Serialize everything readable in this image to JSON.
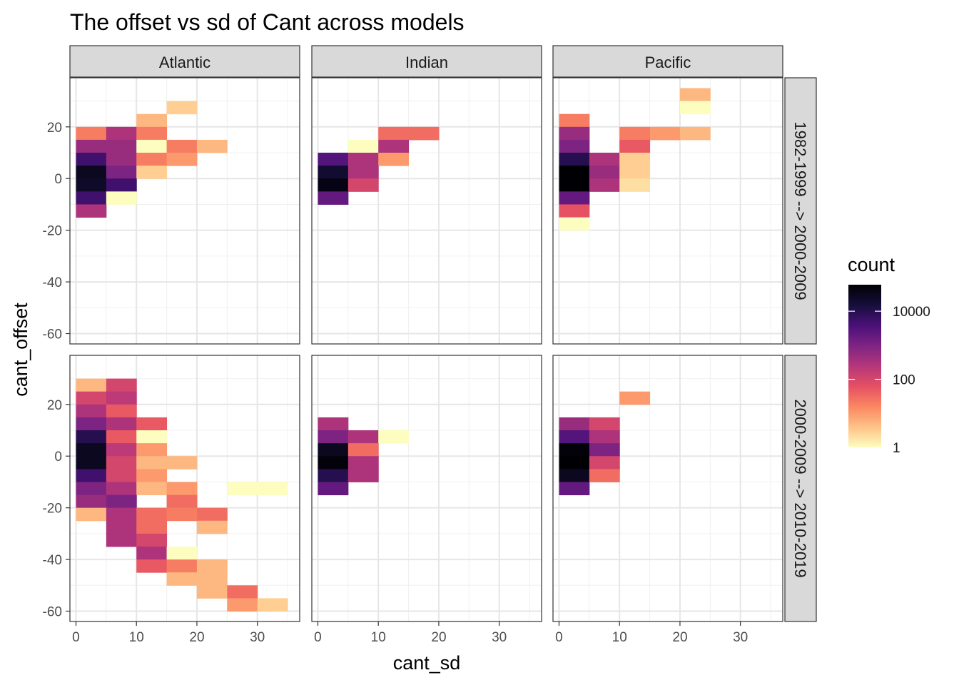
{
  "chart_data": {
    "type": "heatmap",
    "title": "The offset vs sd of Cant across models",
    "xlabel": "cant_sd",
    "ylabel": "cant_offset",
    "xlim": [
      -1,
      37
    ],
    "ylim": [
      -64,
      39
    ],
    "x_ticks": [
      0,
      10,
      20,
      30
    ],
    "y_ticks": [
      20,
      0,
      -20,
      -40,
      -60
    ],
    "x_tick_labels": [
      "0",
      "10",
      "20",
      "30"
    ],
    "y_tick_labels": [
      "20",
      "0",
      "-20",
      "-40",
      "-60"
    ],
    "bin_width": 5,
    "bin_height": 5,
    "columns": [
      "Atlantic",
      "Indian",
      "Pacific"
    ],
    "rows": [
      "1982-1999 --> 2000-2009",
      "2000-2009 --> 2010-2019"
    ],
    "legend": {
      "title": "count",
      "scale": "log10",
      "min": 1,
      "max": 60000,
      "breaks": [
        10000,
        100,
        1
      ],
      "break_labels": [
        "10000",
        "100",
        "1"
      ],
      "colors": [
        "#fcfdbf",
        "#fec287",
        "#fb8761",
        "#e55064",
        "#b5367a",
        "#7e2482",
        "#4a1079",
        "#160f3b",
        "#000004"
      ]
    },
    "panels": [
      {
        "col": 0,
        "row": 0,
        "cells": [
          [
            15,
            25,
            3
          ],
          [
            10,
            20,
            5
          ],
          [
            0,
            15,
            20
          ],
          [
            5,
            15,
            300
          ],
          [
            10,
            15,
            20
          ],
          [
            0,
            10,
            500
          ],
          [
            5,
            10,
            500
          ],
          [
            10,
            10,
            1
          ],
          [
            15,
            10,
            20
          ],
          [
            20,
            10,
            5
          ],
          [
            0,
            5,
            5000
          ],
          [
            5,
            5,
            500
          ],
          [
            10,
            5,
            20
          ],
          [
            15,
            5,
            10
          ],
          [
            0,
            0,
            30000
          ],
          [
            5,
            0,
            1000
          ],
          [
            10,
            0,
            3
          ],
          [
            0,
            -5,
            25000
          ],
          [
            5,
            -5,
            5000
          ],
          [
            0,
            -10,
            5000
          ],
          [
            5,
            -10,
            1
          ],
          [
            0,
            -15,
            300
          ]
        ]
      },
      {
        "col": 1,
        "row": 0,
        "cells": [
          [
            10,
            15,
            30
          ],
          [
            15,
            15,
            30
          ],
          [
            5,
            10,
            1
          ],
          [
            10,
            10,
            300
          ],
          [
            0,
            5,
            3000
          ],
          [
            5,
            5,
            300
          ],
          [
            10,
            5,
            10
          ],
          [
            0,
            0,
            20000
          ],
          [
            5,
            0,
            300
          ],
          [
            0,
            -5,
            40000
          ],
          [
            5,
            -5,
            100
          ],
          [
            0,
            -10,
            2000
          ]
        ]
      },
      {
        "col": 2,
        "row": 0,
        "cells": [
          [
            20,
            30,
            5
          ],
          [
            20,
            25,
            1
          ],
          [
            0,
            20,
            20
          ],
          [
            0,
            15,
            500
          ],
          [
            15,
            15,
            10
          ],
          [
            20,
            15,
            5
          ],
          [
            10,
            15,
            20
          ],
          [
            0,
            10,
            1000
          ],
          [
            10,
            10,
            50
          ],
          [
            0,
            5,
            10000
          ],
          [
            5,
            5,
            300
          ],
          [
            10,
            5,
            3
          ],
          [
            0,
            0,
            60000
          ],
          [
            5,
            0,
            500
          ],
          [
            10,
            0,
            3
          ],
          [
            0,
            -5,
            60000
          ],
          [
            5,
            -5,
            300
          ],
          [
            10,
            -5,
            2
          ],
          [
            0,
            -10,
            2000
          ],
          [
            0,
            -15,
            60
          ],
          [
            0,
            -20,
            1
          ]
        ]
      },
      {
        "col": 0,
        "row": 1,
        "cells": [
          [
            0,
            25,
            5
          ],
          [
            5,
            25,
            100
          ],
          [
            0,
            20,
            100
          ],
          [
            5,
            20,
            200
          ],
          [
            0,
            15,
            300
          ],
          [
            5,
            15,
            50
          ],
          [
            0,
            10,
            1000
          ],
          [
            5,
            10,
            300
          ],
          [
            10,
            10,
            50
          ],
          [
            0,
            5,
            10000
          ],
          [
            5,
            5,
            50
          ],
          [
            10,
            5,
            1
          ],
          [
            0,
            0,
            30000
          ],
          [
            5,
            0,
            200
          ],
          [
            10,
            0,
            10
          ],
          [
            0,
            -5,
            30000
          ],
          [
            5,
            -5,
            100
          ],
          [
            10,
            -5,
            5
          ],
          [
            15,
            -5,
            5
          ],
          [
            0,
            -10,
            5000
          ],
          [
            5,
            -10,
            100
          ],
          [
            10,
            -10,
            10
          ],
          [
            0,
            -15,
            1000
          ],
          [
            5,
            -15,
            300
          ],
          [
            10,
            -15,
            5
          ],
          [
            15,
            -15,
            10
          ],
          [
            25,
            -15,
            1
          ],
          [
            30,
            -15,
            1
          ],
          [
            0,
            -20,
            500
          ],
          [
            5,
            -20,
            1000
          ],
          [
            15,
            -20,
            30
          ],
          [
            0,
            -25,
            5
          ],
          [
            5,
            -25,
            300
          ],
          [
            10,
            -25,
            30
          ],
          [
            15,
            -25,
            20
          ],
          [
            20,
            -25,
            30
          ],
          [
            5,
            -30,
            300
          ],
          [
            10,
            -30,
            30
          ],
          [
            20,
            -30,
            5
          ],
          [
            5,
            -35,
            300
          ],
          [
            10,
            -35,
            100
          ],
          [
            10,
            -40,
            300
          ],
          [
            15,
            -40,
            1
          ],
          [
            10,
            -45,
            50
          ],
          [
            15,
            -45,
            20
          ],
          [
            20,
            -45,
            5
          ],
          [
            15,
            -50,
            5
          ],
          [
            20,
            -50,
            5
          ],
          [
            20,
            -55,
            5
          ],
          [
            25,
            -55,
            30
          ],
          [
            25,
            -60,
            10
          ],
          [
            30,
            -60,
            3
          ]
        ]
      },
      {
        "col": 1,
        "row": 1,
        "cells": [
          [
            0,
            10,
            300
          ],
          [
            0,
            5,
            1000
          ],
          [
            5,
            5,
            300
          ],
          [
            10,
            5,
            1
          ],
          [
            0,
            0,
            30000
          ],
          [
            5,
            0,
            30
          ],
          [
            0,
            -5,
            50000
          ],
          [
            5,
            -5,
            300
          ],
          [
            0,
            -10,
            10000
          ],
          [
            5,
            -10,
            300
          ],
          [
            0,
            -15,
            2000
          ]
        ]
      },
      {
        "col": 2,
        "row": 1,
        "cells": [
          [
            10,
            20,
            10
          ],
          [
            0,
            10,
            500
          ],
          [
            5,
            10,
            100
          ],
          [
            0,
            5,
            3000
          ],
          [
            5,
            5,
            300
          ],
          [
            0,
            0,
            50000
          ],
          [
            5,
            0,
            1000
          ],
          [
            0,
            -5,
            60000
          ],
          [
            5,
            -5,
            100
          ],
          [
            0,
            -10,
            30000
          ],
          [
            5,
            -10,
            30
          ],
          [
            0,
            -15,
            2000
          ]
        ]
      }
    ]
  }
}
